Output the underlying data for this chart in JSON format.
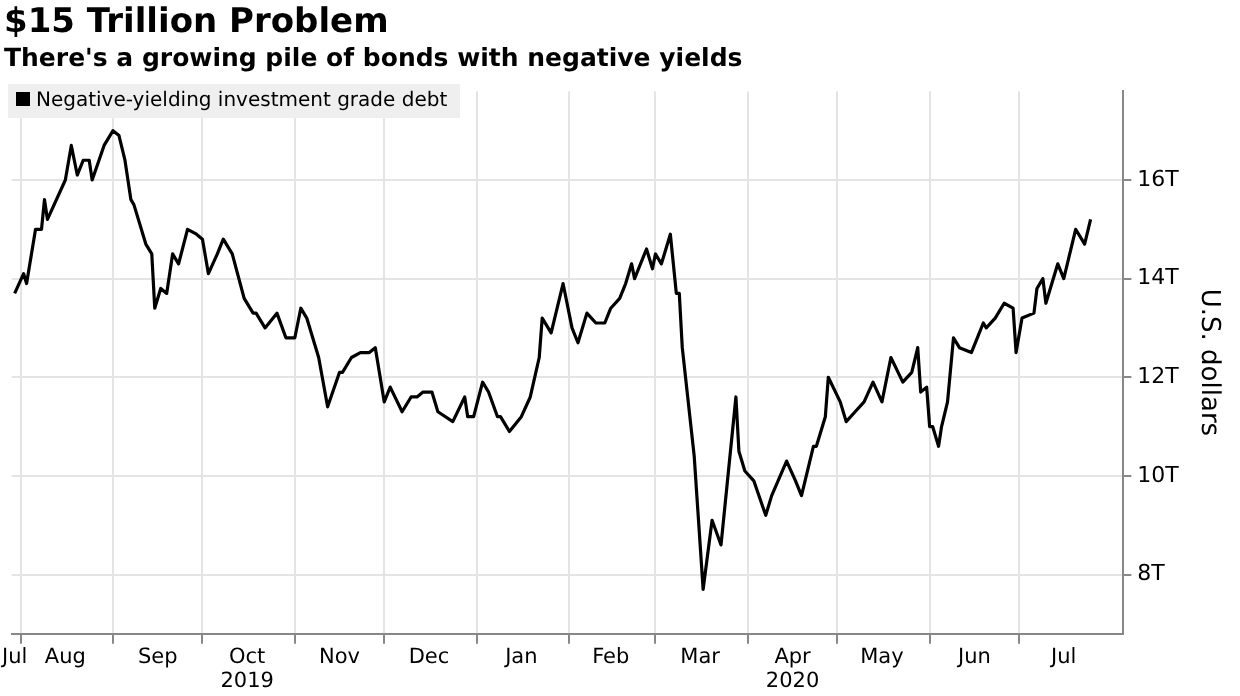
{
  "chart_data": {
    "type": "line",
    "title": "$15 Trillion Problem",
    "subtitle": "There's a growing pile of bonds with negative yields",
    "ylabel": "U.S. dollars",
    "legend": "top left",
    "grid": true,
    "marker": "none",
    "line_style": "solid",
    "xlim": [
      "2019-07-29",
      "2020-08-05"
    ],
    "ylim": [
      6.8,
      17.8
    ],
    "yticks": [
      {
        "value": 8,
        "label": "8T"
      },
      {
        "value": 10,
        "label": "10T"
      },
      {
        "value": 12,
        "label": "12T"
      },
      {
        "value": 14,
        "label": "14T"
      },
      {
        "value": 16,
        "label": "16T"
      }
    ],
    "xticks": [
      {
        "value": "2019-07-30",
        "label": "Jul"
      },
      {
        "value": "2019-08-01",
        "label": null
      },
      {
        "value": "2019-08-16",
        "label": "Aug"
      },
      {
        "value": "2019-09-01",
        "label": null
      },
      {
        "value": "2019-09-16",
        "label": "Sep"
      },
      {
        "value": "2019-10-01",
        "label": null
      },
      {
        "value": "2019-10-16",
        "label": "Oct\n2019"
      },
      {
        "value": "2019-11-01",
        "label": null
      },
      {
        "value": "2019-11-16",
        "label": "Nov"
      },
      {
        "value": "2019-12-01",
        "label": null
      },
      {
        "value": "2019-12-16",
        "label": "Dec"
      },
      {
        "value": "2020-01-01",
        "label": null
      },
      {
        "value": "2020-01-16",
        "label": "Jan"
      },
      {
        "value": "2020-02-01",
        "label": null
      },
      {
        "value": "2020-02-15",
        "label": "Feb"
      },
      {
        "value": "2020-03-01",
        "label": null
      },
      {
        "value": "2020-03-16",
        "label": "Mar"
      },
      {
        "value": "2020-04-01",
        "label": null
      },
      {
        "value": "2020-04-16",
        "label": "Apr\n2020"
      },
      {
        "value": "2020-05-01",
        "label": null
      },
      {
        "value": "2020-05-16",
        "label": "May"
      },
      {
        "value": "2020-06-01",
        "label": null
      },
      {
        "value": "2020-06-16",
        "label": "Jun"
      },
      {
        "value": "2020-07-01",
        "label": null
      },
      {
        "value": "2020-07-16",
        "label": "Jul"
      }
    ],
    "x": [
      "2019-07-30",
      "2019-08-02",
      "2019-08-03",
      "2019-08-06",
      "2019-08-08",
      "2019-08-09",
      "2019-08-10",
      "2019-08-16",
      "2019-08-18",
      "2019-08-20",
      "2019-08-22",
      "2019-08-24",
      "2019-08-25",
      "2019-08-29",
      "2019-09-01",
      "2019-09-03",
      "2019-09-05",
      "2019-09-07",
      "2019-09-08",
      "2019-09-12",
      "2019-09-14",
      "2019-09-15",
      "2019-09-17",
      "2019-09-19",
      "2019-09-21",
      "2019-09-23",
      "2019-09-26",
      "2019-09-29",
      "2019-10-01",
      "2019-10-03",
      "2019-10-06",
      "2019-10-08",
      "2019-10-11",
      "2019-10-15",
      "2019-10-18",
      "2019-10-19",
      "2019-10-22",
      "2019-10-26",
      "2019-10-29",
      "2019-11-01",
      "2019-11-03",
      "2019-11-05",
      "2019-11-09",
      "2019-11-12",
      "2019-11-16",
      "2019-11-17",
      "2019-11-20",
      "2019-11-23",
      "2019-11-26",
      "2019-11-28",
      "2019-12-01",
      "2019-12-03",
      "2019-12-07",
      "2019-12-10",
      "2019-12-12",
      "2019-12-14",
      "2019-12-17",
      "2019-12-19",
      "2019-12-24",
      "2019-12-28",
      "2019-12-29",
      "2019-12-31",
      "2020-01-03",
      "2020-01-05",
      "2020-01-08",
      "2020-01-09",
      "2020-01-12",
      "2020-01-16",
      "2020-01-19",
      "2020-01-22",
      "2020-01-23",
      "2020-01-26",
      "2020-01-30",
      "2020-02-02",
      "2020-02-04",
      "2020-02-07",
      "2020-02-10",
      "2020-02-13",
      "2020-02-15",
      "2020-02-18",
      "2020-02-20",
      "2020-02-22",
      "2020-02-23",
      "2020-02-27",
      "2020-02-29",
      "2020-03-01",
      "2020-03-03",
      "2020-03-06",
      "2020-03-08",
      "2020-03-09",
      "2020-03-10",
      "2020-03-14",
      "2020-03-17",
      "2020-03-20",
      "2020-03-23",
      "2020-03-28",
      "2020-03-29",
      "2020-03-31",
      "2020-04-03",
      "2020-04-07",
      "2020-04-09",
      "2020-04-14",
      "2020-04-17",
      "2020-04-19",
      "2020-04-23",
      "2020-04-24",
      "2020-04-27",
      "2020-04-28",
      "2020-05-02",
      "2020-05-04",
      "2020-05-07",
      "2020-05-10",
      "2020-05-13",
      "2020-05-16",
      "2020-05-19",
      "2020-05-23",
      "2020-05-26",
      "2020-05-28",
      "2020-05-29",
      "2020-05-31",
      "2020-06-01",
      "2020-06-02",
      "2020-06-04",
      "2020-06-05",
      "2020-06-07",
      "2020-06-09",
      "2020-06-11",
      "2020-06-15",
      "2020-06-17",
      "2020-06-19",
      "2020-06-20",
      "2020-06-23",
      "2020-06-26",
      "2020-06-29",
      "2020-06-30",
      "2020-07-02",
      "2020-07-06",
      "2020-07-07",
      "2020-07-09",
      "2020-07-10",
      "2020-07-12",
      "2020-07-14",
      "2020-07-16",
      "2020-07-20",
      "2020-07-23",
      "2020-07-25"
    ],
    "series": [
      {
        "name": "Negative-yielding investment grade debt",
        "color": "#000000",
        "values": [
          13.7,
          14.1,
          13.9,
          15.0,
          15.0,
          15.6,
          15.2,
          16.0,
          16.7,
          16.1,
          16.4,
          16.4,
          16.0,
          16.7,
          17.0,
          16.9,
          16.4,
          15.6,
          15.5,
          14.7,
          14.5,
          13.4,
          13.8,
          13.7,
          14.5,
          14.3,
          15.0,
          14.9,
          14.8,
          14.1,
          14.5,
          14.8,
          14.5,
          13.6,
          13.3,
          13.3,
          13.0,
          13.3,
          12.8,
          12.8,
          13.4,
          13.2,
          12.4,
          11.4,
          12.1,
          12.1,
          12.4,
          12.5,
          12.5,
          12.6,
          11.5,
          11.8,
          11.3,
          11.6,
          11.6,
          11.7,
          11.7,
          11.3,
          11.1,
          11.6,
          11.2,
          11.2,
          11.9,
          11.7,
          11.2,
          11.2,
          10.9,
          11.2,
          11.6,
          12.4,
          13.2,
          12.9,
          13.9,
          13.0,
          12.7,
          13.3,
          13.1,
          13.1,
          13.4,
          13.6,
          13.9,
          14.3,
          14.0,
          14.6,
          14.2,
          14.5,
          14.3,
          14.9,
          13.7,
          13.7,
          12.6,
          10.4,
          7.7,
          9.1,
          8.6,
          11.6,
          10.5,
          10.1,
          9.9,
          9.2,
          9.6,
          10.3,
          9.9,
          9.6,
          10.6,
          10.6,
          11.2,
          12.0,
          11.5,
          11.1,
          11.3,
          11.5,
          11.9,
          11.5,
          12.4,
          11.9,
          12.1,
          12.6,
          11.7,
          11.8,
          11.0,
          11.0,
          10.6,
          11.0,
          11.5,
          12.8,
          12.6,
          12.5,
          12.8,
          13.1,
          13.0,
          13.2,
          13.5,
          13.4,
          12.5,
          13.2,
          13.3,
          13.8,
          14.0,
          13.5,
          13.9,
          14.3,
          14.0,
          15.0,
          14.7,
          15.2
        ]
      }
    ]
  }
}
